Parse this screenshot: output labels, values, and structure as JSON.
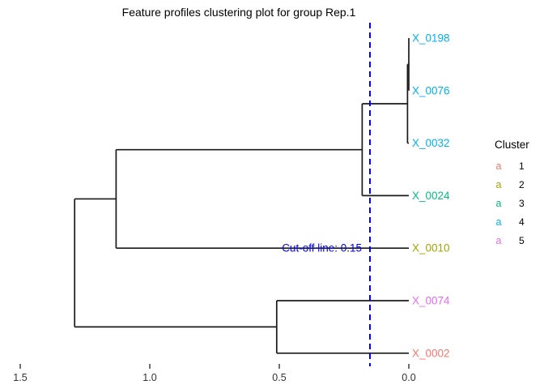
{
  "chart_data": {
    "type": "dendrogram",
    "orientation": "horizontal",
    "title": "Feature profiles clustering plot for group Rep.1",
    "line_color": "#1A1A1A",
    "leaves": [
      {
        "name": "X_0198",
        "cluster": "4",
        "color": "#00B0F6"
      },
      {
        "name": "X_0076",
        "cluster": "4",
        "color": "#00B0F6"
      },
      {
        "name": "X_0032",
        "cluster": "4",
        "color": "#00B0F6"
      },
      {
        "name": "X_0024",
        "cluster": "3",
        "color": "#00BF7D"
      },
      {
        "name": "X_0010",
        "cluster": "2",
        "color": "#A3A500"
      },
      {
        "name": "X_0074",
        "cluster": "5",
        "color": "#E76BF3"
      },
      {
        "name": "X_0002",
        "cluster": "1",
        "color": "#F8766D"
      }
    ],
    "merges": [
      {
        "id": "n1",
        "children": [
          "X_0198",
          "X_0076"
        ],
        "height": 0.0
      },
      {
        "id": "n2",
        "children": [
          "n1",
          "X_0032"
        ],
        "height": 0.005
      },
      {
        "id": "n3",
        "children": [
          "n2",
          "X_0024"
        ],
        "height": 0.18
      },
      {
        "id": "n4",
        "children": [
          "n3",
          "X_0010"
        ],
        "height": 1.13
      },
      {
        "id": "n5",
        "children": [
          "X_0074",
          "X_0002"
        ],
        "height": 0.51
      },
      {
        "id": "root",
        "children": [
          "n4",
          "n5"
        ],
        "height": 1.29
      }
    ],
    "cutoff": {
      "value": 0.15,
      "label": "Cut-off line: 0.15",
      "color": "#0000FF"
    },
    "axis": {
      "ticks": [
        1.5,
        1.0,
        0.5,
        0.0
      ],
      "tick_labels": [
        "1.5",
        "1.0",
        "0.5",
        "0.0"
      ],
      "range": [
        1.5,
        0.0
      ]
    },
    "legend": {
      "title": "Cluster",
      "key_glyph": "a",
      "entries": [
        {
          "label": "1",
          "color": "#F8766D"
        },
        {
          "label": "2",
          "color": "#A3A500"
        },
        {
          "label": "3",
          "color": "#00BF7D"
        },
        {
          "label": "4",
          "color": "#00B0F6"
        },
        {
          "label": "5",
          "color": "#E76BF3"
        }
      ]
    }
  }
}
